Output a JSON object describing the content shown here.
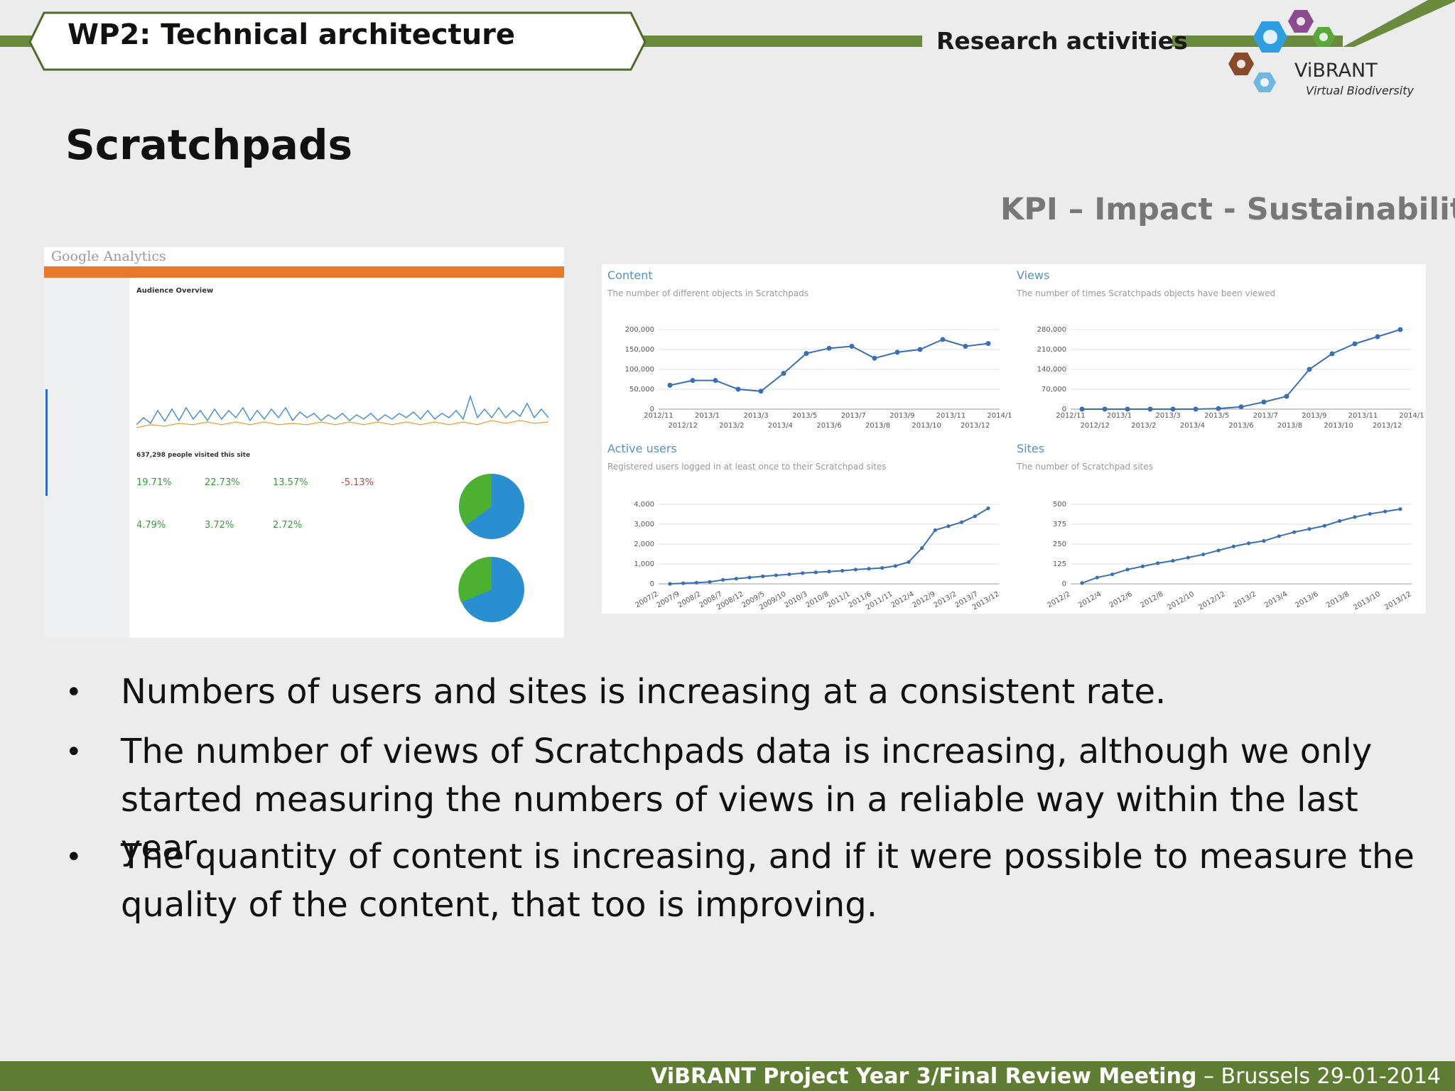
{
  "header": {
    "wp_title": "WP2: Technical architecture",
    "section": "Research activities",
    "logo_name": "ViBRANT",
    "logo_sub": "Virtual Biodiversity",
    "colors": {
      "bar": "#6a8a3d",
      "hex_blue": "#2f9ee0",
      "hex_purple": "#8a4b8f",
      "hex_green": "#5aa83a",
      "hex_brown": "#8a4a2a"
    }
  },
  "slide": {
    "title": "Scratchpads",
    "kpi": "KPI – Impact - Sustainability"
  },
  "analytics": {
    "logo": "Google Analytics",
    "heading": "Audience Overview",
    "visits_label": "637,298 people visited this site",
    "percentages": [
      "19.71%",
      "22.73%",
      "13.57%",
      "-5.13%"
    ],
    "percentages2": [
      "4.79%",
      "3.72%",
      "2.72%"
    ]
  },
  "chart_data": [
    {
      "type": "line",
      "title": "Content",
      "subtitle": "The number of different objects in Scratchpads",
      "x": [
        "2012/11",
        "2012/12",
        "2013/1",
        "2013/2",
        "2013/3",
        "2013/4",
        "2013/5",
        "2013/6",
        "2013/7",
        "2013/8",
        "2013/9",
        "2013/10",
        "2013/11",
        "2013/12",
        "2014/1"
      ],
      "x_tick_labels": [
        "2012/11",
        "2012/12",
        "2013/1",
        "2013/2",
        "2013/3",
        "2013/4",
        "2013/5",
        "2013/6",
        "2013/7",
        "2013/8",
        "2013/9",
        "2013/10",
        "2013/11",
        "2013/12",
        "2014/1"
      ],
      "values": [
        60000,
        72000,
        72000,
        50000,
        45000,
        90000,
        140000,
        153000,
        158000,
        128000,
        143000,
        150000,
        175000,
        158000,
        165000
      ],
      "ylim": [
        0,
        200000
      ],
      "y_ticks": [
        "0",
        "50,000",
        "100,000",
        "150,000",
        "200,000"
      ]
    },
    {
      "type": "line",
      "title": "Views",
      "subtitle": "The number of times Scratchpads objects have been viewed",
      "x": [
        "2012/11",
        "2012/12",
        "2013/1",
        "2013/2",
        "2013/3",
        "2013/4",
        "2013/5",
        "2013/6",
        "2013/7",
        "2013/8",
        "2013/9",
        "2013/10",
        "2013/11",
        "2013/12",
        "2014/1"
      ],
      "x_tick_labels": [
        "2012/11",
        "2012/12",
        "2013/1",
        "2013/2",
        "2013/3",
        "2013/4",
        "2013/5",
        "2013/6",
        "2013/7",
        "2013/8",
        "2013/9",
        "2013/10",
        "2013/11",
        "2013/12",
        "2014/1"
      ],
      "values": [
        0,
        0,
        0,
        0,
        0,
        0,
        2000,
        8000,
        25000,
        45000,
        140000,
        195000,
        230000,
        255000,
        280000
      ],
      "ylim": [
        0,
        280000
      ],
      "y_ticks": [
        "0",
        "70,000",
        "140,000",
        "210,000",
        "280,000"
      ]
    },
    {
      "type": "line",
      "title": "Active users",
      "subtitle": "Registered users logged in at least once to their Scratchpad sites",
      "x_tick_labels": [
        "2007/2",
        "2007/9",
        "2008/2",
        "2008/7",
        "2008/12",
        "2009/5",
        "2009/10",
        "2010/3",
        "2010/8",
        "2011/1",
        "2011/6",
        "2011/11",
        "2012/4",
        "2012/9",
        "2013/2",
        "2013/7",
        "2013/12"
      ],
      "values": [
        0,
        30,
        60,
        100,
        200,
        260,
        320,
        380,
        430,
        480,
        540,
        580,
        620,
        660,
        720,
        760,
        800,
        900,
        1100,
        1800,
        2700,
        2900,
        3100,
        3400,
        3800
      ],
      "ylim": [
        0,
        4000
      ],
      "y_ticks": [
        "0",
        "1,000",
        "2,000",
        "3,000",
        "4,000"
      ]
    },
    {
      "type": "line",
      "title": "Sites",
      "subtitle": "The number of Scratchpad sites",
      "x_tick_labels": [
        "2012/2",
        "2012/4",
        "2012/6",
        "2012/8",
        "2012/10",
        "2012/12",
        "2013/2",
        "2013/4",
        "2013/6",
        "2013/8",
        "2013/10",
        "2013/12"
      ],
      "values": [
        5,
        40,
        60,
        90,
        110,
        130,
        145,
        165,
        185,
        210,
        235,
        255,
        270,
        300,
        325,
        345,
        365,
        395,
        420,
        440,
        455,
        470
      ],
      "ylim": [
        0,
        500
      ],
      "y_ticks": [
        "0",
        "125",
        "250",
        "375",
        "500"
      ]
    }
  ],
  "bullets": [
    "Numbers of users and sites is increasing at a consistent rate.",
    "The number of views of Scratchpads data is increasing, although we only started measuring the numbers of views in a reliable way within the last year.",
    "The quantity of content is increasing, and if it were possible to measure the quality of the content, that too is improving."
  ],
  "footer": {
    "bold": "ViBRANT Project Year 3/Final Review Meeting",
    "rest": " – Brussels 29-01-2014"
  }
}
